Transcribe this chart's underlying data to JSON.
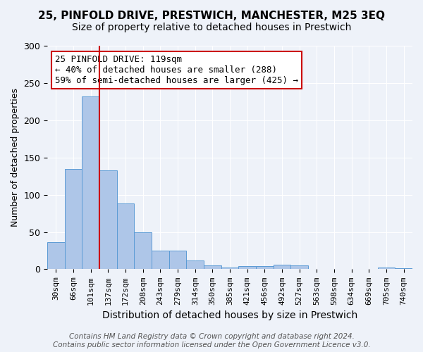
{
  "title": "25, PINFOLD DRIVE, PRESTWICH, MANCHESTER, M25 3EQ",
  "subtitle": "Size of property relative to detached houses in Prestwich",
  "xlabel": "Distribution of detached houses by size in Prestwich",
  "ylabel": "Number of detached properties",
  "footer1": "Contains HM Land Registry data © Crown copyright and database right 2024.",
  "footer2": "Contains public sector information licensed under the Open Government Licence v3.0.",
  "bin_labels": [
    "30sqm",
    "66sqm",
    "101sqm",
    "137sqm",
    "172sqm",
    "208sqm",
    "243sqm",
    "279sqm",
    "314sqm",
    "350sqm",
    "385sqm",
    "421sqm",
    "456sqm",
    "492sqm",
    "527sqm",
    "563sqm",
    "598sqm",
    "634sqm",
    "669sqm",
    "705sqm",
    "740sqm"
  ],
  "bar_values": [
    36,
    135,
    232,
    133,
    88,
    50,
    25,
    25,
    12,
    5,
    2,
    4,
    4,
    6,
    5,
    0,
    0,
    0,
    0,
    2,
    1
  ],
  "bar_color": "#aec6e8",
  "bar_edge_color": "#5b9bd5",
  "property_sqm": 119,
  "marker_bin_index": 2,
  "annotation_text": "25 PINFOLD DRIVE: 119sqm\n← 40% of detached houses are smaller (288)\n59% of semi-detached houses are larger (425) →",
  "annotation_box_color": "#ffffff",
  "annotation_box_edge_color": "#cc0000",
  "vline_color": "#cc0000",
  "ylim": [
    0,
    300
  ],
  "yticks": [
    0,
    50,
    100,
    150,
    200,
    250,
    300
  ],
  "background_color": "#eef2f9",
  "grid_color": "#ffffff",
  "title_fontsize": 11,
  "subtitle_fontsize": 10,
  "xlabel_fontsize": 10,
  "ylabel_fontsize": 9,
  "tick_fontsize": 8,
  "annotation_fontsize": 9,
  "footer_fontsize": 7.5
}
